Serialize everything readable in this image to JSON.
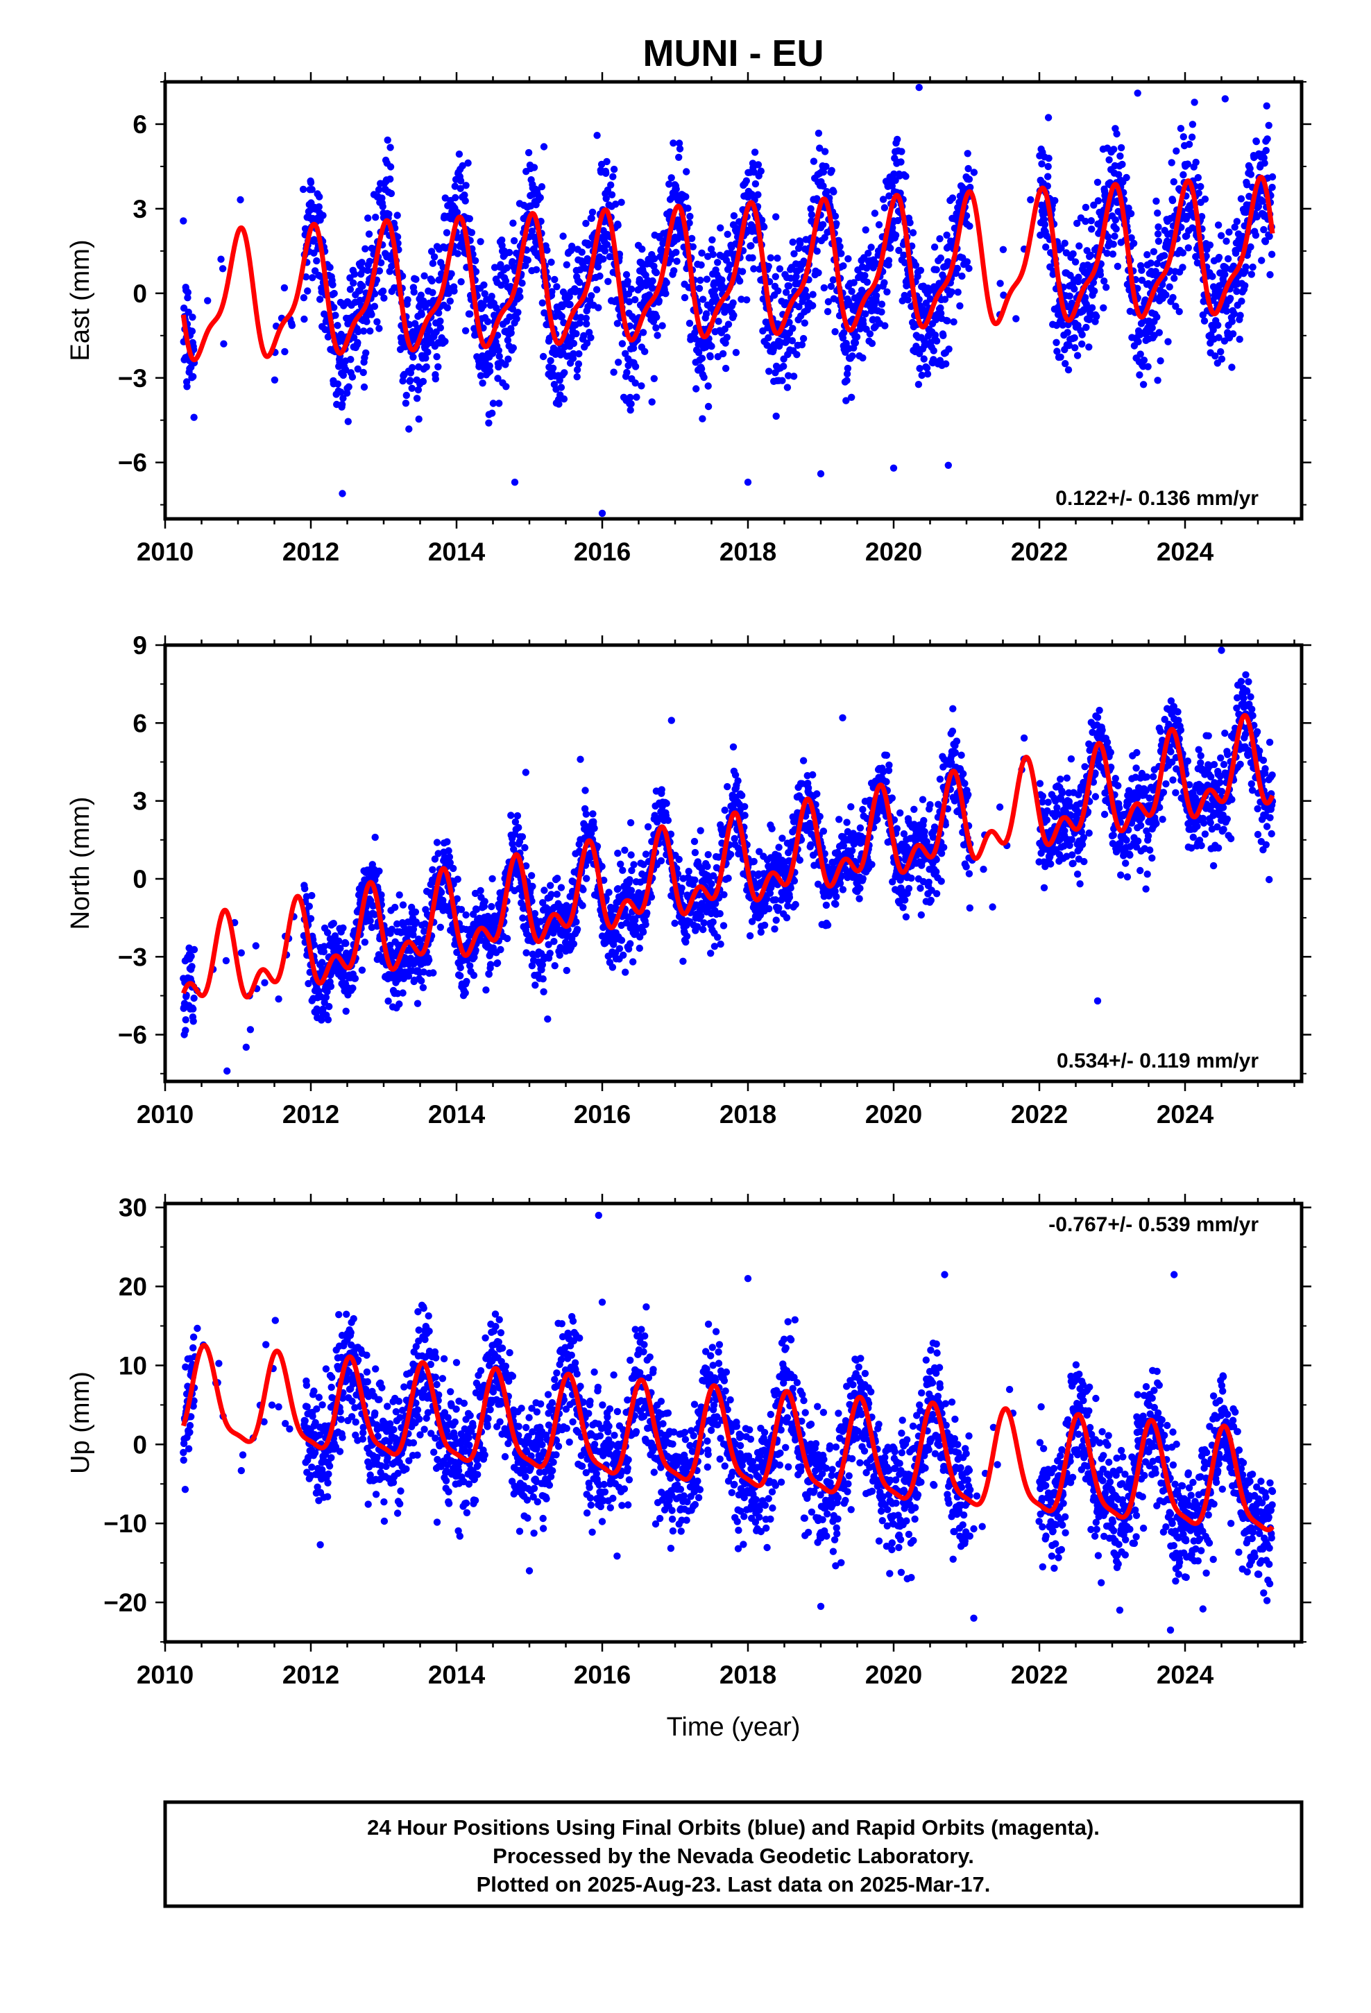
{
  "chart_data": {
    "type": "scatter",
    "title": "MUNI - EU",
    "xlabel": "Time (year)",
    "xlim": [
      2010.0,
      2025.6
    ],
    "x_ticks": [
      2010,
      2012,
      2014,
      2016,
      2018,
      2020,
      2022,
      2024
    ],
    "x_tick_labels": [
      "2010",
      "2012",
      "2014",
      "2016",
      "2018",
      "2020",
      "2022",
      "2024"
    ],
    "point_color": "#0000ff",
    "model_color": "#ff0000",
    "data_gaps": [
      [
        2010.4,
        2011.9
      ],
      [
        2021.05,
        2022.0
      ]
    ],
    "panels": [
      {
        "name": "east",
        "ylabel": "East (mm)",
        "ylim": [
          -8.0,
          7.5
        ],
        "y_ticks": [
          -6,
          -3,
          0,
          3,
          6
        ],
        "y_tick_labels": [
          "−6",
          "−3",
          "0",
          "3",
          "6"
        ],
        "rate_text": "0.122+/- 0.136 mm/yr",
        "rate_position": "bottom-right",
        "model": {
          "offset": -0.35,
          "rate": 0.122,
          "t0": 2010.25,
          "annual_amp": 2.0,
          "annual_phase": 0.25,
          "semiannual_amp": 0.7,
          "semiannual_phase": 0.05,
          "amp_trend": 0.05
        },
        "scatter_sd": 1.2,
        "outliers": [
          [
            2020.35,
            7.3
          ],
          [
            2016.0,
            -7.8
          ],
          [
            2015.2,
            5.2
          ],
          [
            2018.0,
            -6.7
          ],
          [
            2019.0,
            -6.4
          ],
          [
            2020.0,
            -6.2
          ],
          [
            2020.75,
            -6.1
          ],
          [
            2014.8,
            -6.7
          ],
          [
            2023.35,
            7.1
          ],
          [
            2024.55,
            6.9
          ]
        ]
      },
      {
        "name": "north",
        "ylabel": "North (mm)",
        "ylim": [
          -7.8,
          9.0
        ],
        "y_ticks": [
          -6,
          -3,
          0,
          3,
          6,
          9
        ],
        "y_tick_labels": [
          "−6",
          "−3",
          "0",
          "3",
          "6",
          "9"
        ],
        "rate_text": "0.534+/- 0.119 mm/yr",
        "rate_position": "bottom-right",
        "model": {
          "offset": -3.7,
          "rate": 0.534,
          "t0": 2010.25,
          "annual_amp": 1.3,
          "annual_phase": 0.45,
          "semiannual_amp": 0.9,
          "semiannual_phase": 0.3,
          "amp_trend": 0.02
        },
        "scatter_sd": 0.85,
        "outliers": [
          [
            2010.85,
            -7.4
          ],
          [
            2024.5,
            8.8
          ],
          [
            2015.7,
            4.6
          ],
          [
            2016.95,
            6.1
          ],
          [
            2019.3,
            6.2
          ],
          [
            2022.8,
            -4.7
          ],
          [
            2015.25,
            -5.4
          ],
          [
            2014.95,
            4.1
          ]
        ]
      },
      {
        "name": "up",
        "ylabel": "Up (mm)",
        "ylim": [
          -25.0,
          30.5
        ],
        "y_ticks": [
          -20,
          -10,
          0,
          10,
          20,
          30
        ],
        "y_tick_labels": [
          "−20",
          "−10",
          "0",
          "10",
          "20",
          "30"
        ],
        "rate_text": "-0.767+/- 0.539 mm/yr",
        "rate_position": "top-right",
        "model": {
          "offset": 5.6,
          "rate": -0.767,
          "t0": 2010.25,
          "annual_amp": 5.6,
          "annual_phase": 0.7,
          "semiannual_amp": 1.6,
          "semiannual_phase": 0.1,
          "amp_trend": 0.1
        },
        "scatter_sd": 3.8,
        "outliers": [
          [
            2015.95,
            29.0
          ],
          [
            2016.0,
            18.0
          ],
          [
            2018.0,
            21.0
          ],
          [
            2020.7,
            21.5
          ],
          [
            2023.85,
            21.5
          ],
          [
            2021.1,
            -22.0
          ],
          [
            2023.8,
            -23.5
          ],
          [
            2019.0,
            -20.5
          ],
          [
            2015.0,
            -16.0
          ]
        ]
      }
    ],
    "footer": [
      "24 Hour Positions Using Final Orbits (blue) and Rapid Orbits (magenta).",
      "Processed by the Nevada Geodetic Laboratory.",
      "Plotted on 2025-Aug-23. Last data on 2025-Mar-17."
    ]
  }
}
